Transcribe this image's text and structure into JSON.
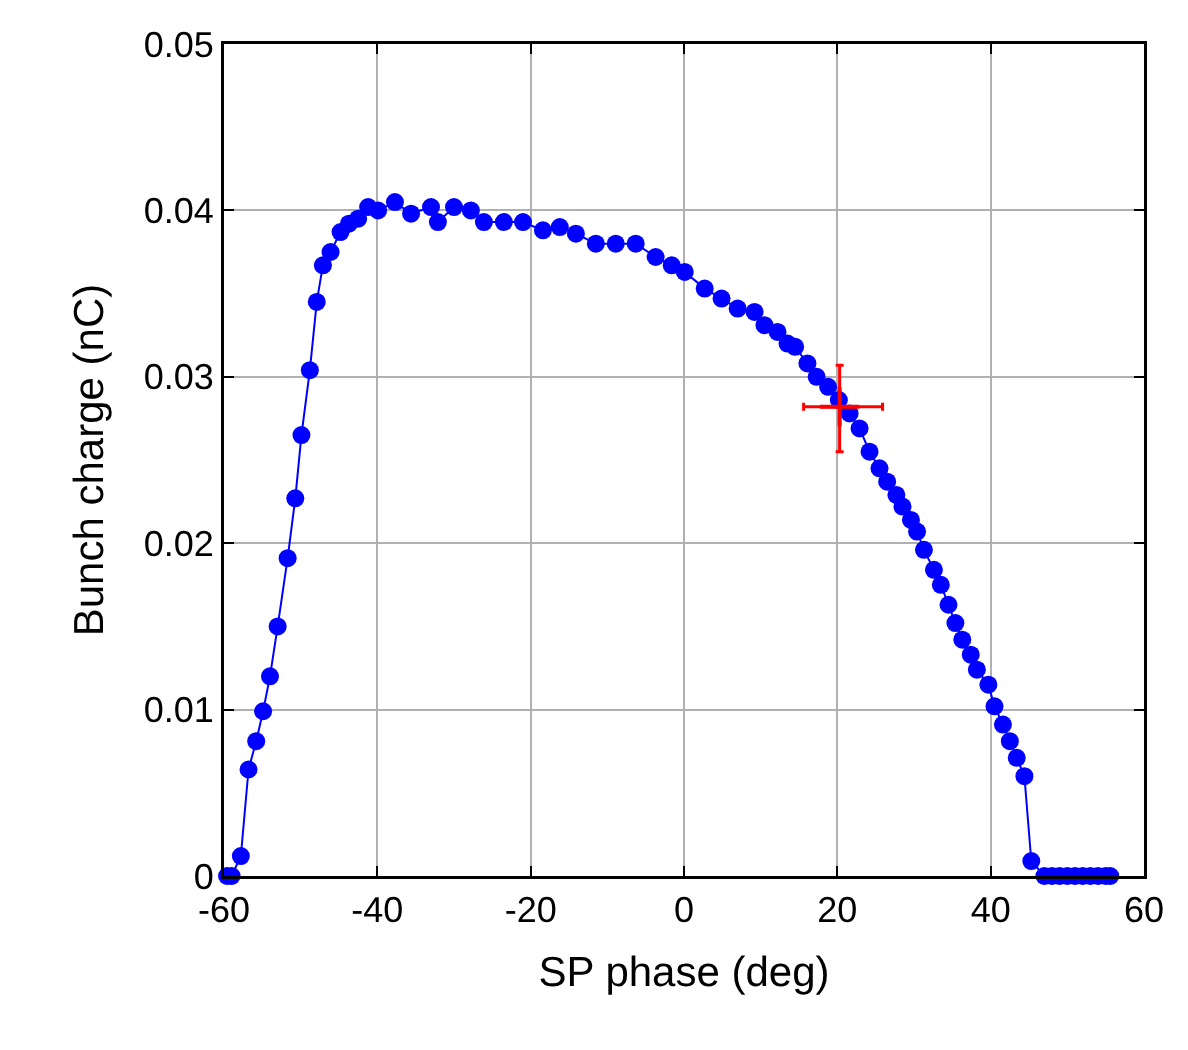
{
  "chart_data": {
    "type": "line",
    "xlabel": "SP phase (deg)",
    "ylabel": "Bunch charge (nC)",
    "xlim": [
      -60,
      60
    ],
    "ylim": [
      0,
      0.05
    ],
    "xticks": [
      -60,
      -40,
      -20,
      0,
      20,
      40,
      60
    ],
    "yticks": [
      0,
      0.01,
      0.02,
      0.03,
      0.04,
      0.05
    ],
    "grid": true,
    "marker": "circle",
    "line_style": "solid",
    "series": [
      {
        "color": "#0000ff",
        "x": [
          -59.6,
          -59.0,
          -57.8,
          -56.8,
          -55.8,
          -54.9,
          -54.0,
          -53.0,
          -51.7,
          -50.7,
          -49.9,
          -48.8,
          -47.9,
          -47.1,
          -46.1,
          -44.8,
          -43.7,
          -42.5,
          -41.2,
          -39.9,
          -37.7,
          -35.6,
          -33.0,
          -32.1,
          -30.0,
          -27.8,
          -26.1,
          -23.5,
          -21.0,
          -18.4,
          -16.2,
          -14.1,
          -11.5,
          -8.9,
          -6.3,
          -3.7,
          -1.6,
          0.1,
          2.7,
          4.9,
          7.0,
          9.2,
          10.5,
          12.2,
          13.5,
          14.5,
          16.1,
          17.3,
          18.8,
          20.2,
          21.6,
          22.9,
          24.2,
          25.5,
          26.5,
          27.7,
          28.5,
          29.6,
          30.4,
          31.3,
          32.6,
          33.5,
          34.5,
          35.4,
          36.3,
          37.4,
          38.2,
          39.7,
          40.5,
          41.6,
          42.5,
          43.4,
          44.4,
          45.3,
          47.0,
          48.0,
          49.0,
          50.0,
          51.0,
          52.0,
          53.0,
          54.0,
          55.0,
          55.6
        ],
        "values": [
          0,
          0,
          0.0012,
          0.0064,
          0.0081,
          0.0099,
          0.012,
          0.015,
          0.0191,
          0.0227,
          0.0265,
          0.0304,
          0.0345,
          0.0367,
          0.0375,
          0.0387,
          0.0392,
          0.0395,
          0.0402,
          0.04,
          0.0405,
          0.0398,
          0.0402,
          0.0393,
          0.0402,
          0.04,
          0.0393,
          0.0393,
          0.0393,
          0.0388,
          0.039,
          0.0386,
          0.038,
          0.038,
          0.038,
          0.0372,
          0.0367,
          0.0363,
          0.0353,
          0.0347,
          0.0341,
          0.0339,
          0.0331,
          0.0327,
          0.032,
          0.0318,
          0.0308,
          0.03,
          0.0294,
          0.0286,
          0.0278,
          0.0269,
          0.0255,
          0.0245,
          0.0237,
          0.0229,
          0.0222,
          0.0214,
          0.0207,
          0.0196,
          0.0184,
          0.0175,
          0.0163,
          0.0152,
          0.0142,
          0.0133,
          0.0124,
          0.0115,
          0.0102,
          0.0091,
          0.0081,
          0.0071,
          0.006,
          0.0009,
          0,
          0,
          0,
          0,
          0,
          0,
          0,
          0,
          0,
          0
        ]
      },
      {
        "type": "scatter",
        "marker": "cross",
        "color": "#ff0000",
        "x": [
          20.3
        ],
        "values": [
          0.0282
        ],
        "errors": [
          [
            0.0255,
            0.0307
          ]
        ],
        "xerrors": [
          [
            15.6,
            25.9
          ]
        ]
      }
    ]
  }
}
